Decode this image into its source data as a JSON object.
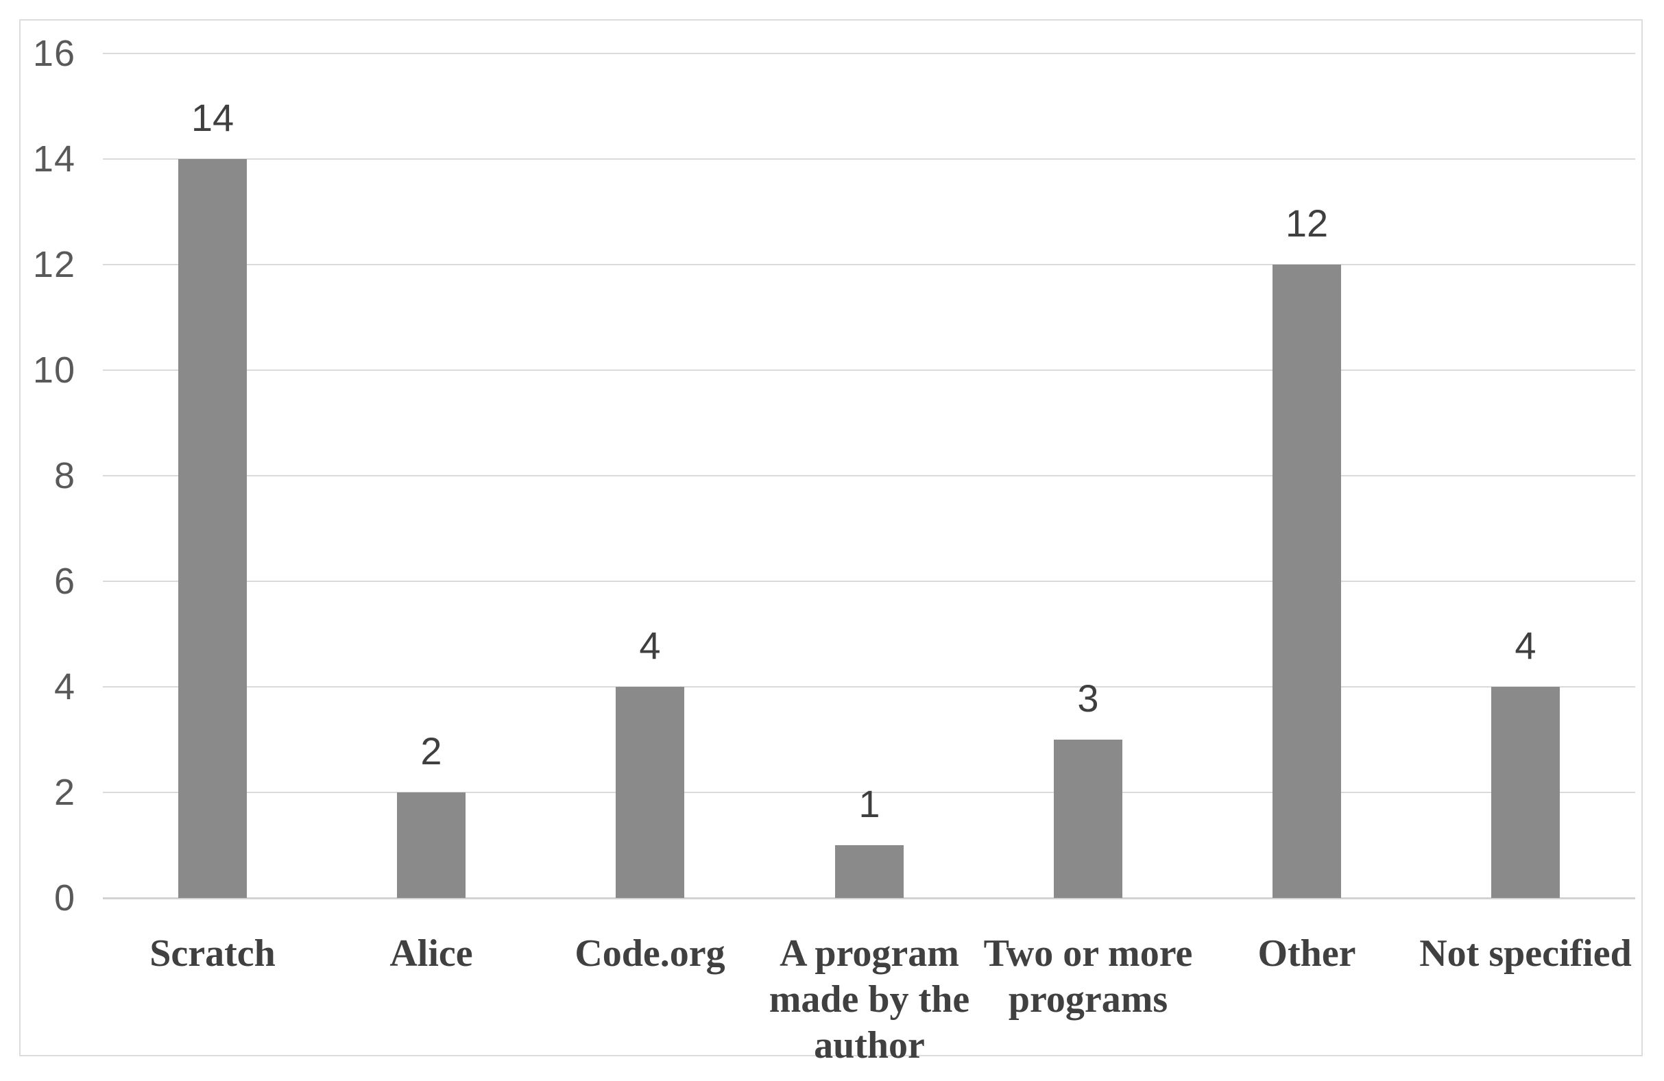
{
  "chart_data": {
    "type": "bar",
    "categories": [
      "Scratch",
      "Alice",
      "Code.org",
      "A program made by the author",
      "Two or more programs",
      "Other",
      "Not specified"
    ],
    "category_lines": [
      [
        "Scratch"
      ],
      [
        "Alice"
      ],
      [
        "Code.org"
      ],
      [
        "A program",
        "made by the",
        "author"
      ],
      [
        "Two or more",
        "programs"
      ],
      [
        "Other"
      ],
      [
        "Not specified"
      ]
    ],
    "values": [
      14,
      2,
      4,
      1,
      3,
      12,
      4
    ],
    "data_labels": [
      "14",
      "2",
      "4",
      "1",
      "3",
      "12",
      "4"
    ],
    "title": "",
    "xlabel": "",
    "ylabel": "",
    "ylim": [
      0,
      16
    ],
    "yticks": [
      "0",
      "2",
      "4",
      "6",
      "8",
      "10",
      "12",
      "14",
      "16"
    ],
    "ytick_values": [
      0,
      2,
      4,
      6,
      8,
      10,
      12,
      14,
      16
    ],
    "grid": true,
    "legend": false,
    "colors": {
      "bar_fill": "#8a8a8a",
      "gridline": "#dadada",
      "axis_line": "#d2d2d2",
      "y_tick_label": "#595959",
      "data_label": "#3f3f3f",
      "category_label": "#404040",
      "frame_border": "#dcdcdc",
      "background": "#ffffff"
    }
  }
}
